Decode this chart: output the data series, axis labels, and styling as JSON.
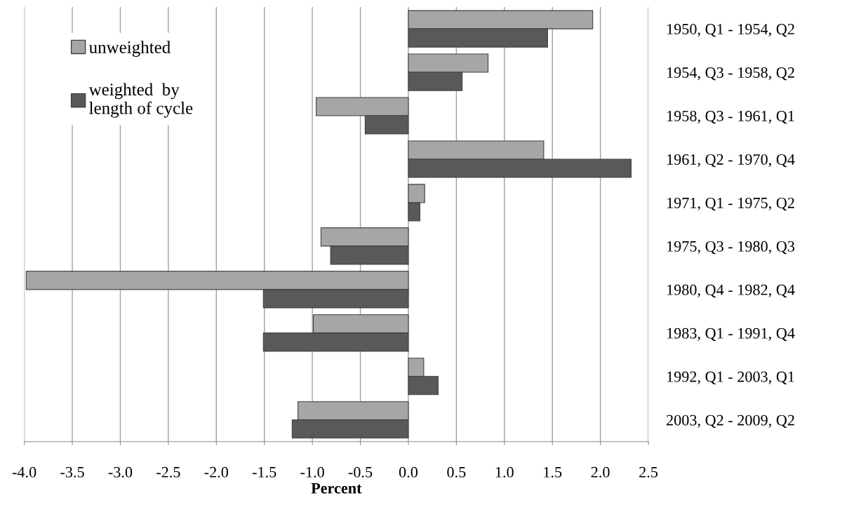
{
  "chart_data": {
    "type": "bar",
    "orientation": "horizontal",
    "xlabel": "Percent",
    "categories": [
      "1950, Q1 - 1954, Q2",
      "1954, Q3 - 1958, Q2",
      "1958, Q3 - 1961, Q1",
      "1961, Q2 - 1970, Q4",
      "1971, Q1 - 1975, Q2",
      "1975, Q3 - 1980, Q3",
      "1980, Q4 - 1982, Q4",
      "1983, Q1 - 1991, Q4",
      "1992, Q1 - 2003, Q1",
      "2003, Q2 - 2009, Q2"
    ],
    "series": [
      {
        "name": "unweighted",
        "color": "#a6a6a6",
        "values": [
          1.92,
          0.83,
          -0.96,
          1.41,
          0.17,
          -0.91,
          -3.98,
          -0.99,
          0.16,
          -1.15
        ]
      },
      {
        "name": "weighted  by\nlength of cycle",
        "color": "#595959",
        "values": [
          1.45,
          0.56,
          -0.45,
          2.32,
          0.12,
          -0.81,
          -1.51,
          -1.51,
          0.31,
          -1.21
        ]
      }
    ],
    "xlim": [
      -4.0,
      2.5
    ],
    "xticks": [
      {
        "value": -4.0,
        "label": "-4.0"
      },
      {
        "value": -3.5,
        "label": "-3.5"
      },
      {
        "value": -3.0,
        "label": "-3.0"
      },
      {
        "value": -2.5,
        "label": "-2.5"
      },
      {
        "value": -2.0,
        "label": "-2.0"
      },
      {
        "value": -1.5,
        "label": "-1.5"
      },
      {
        "value": -1.0,
        "label": "-1.0"
      },
      {
        "value": -0.5,
        "label": "-0.5"
      },
      {
        "value": 0.0,
        "label": "0.0"
      },
      {
        "value": 0.5,
        "label": "0.5"
      },
      {
        "value": 1.0,
        "label": "1.0"
      },
      {
        "value": 1.5,
        "label": "1.5"
      },
      {
        "value": 2.0,
        "label": "2.0"
      },
      {
        "value": 2.5,
        "label": "2.5"
      }
    ],
    "grid": "x",
    "legend": "top left"
  }
}
